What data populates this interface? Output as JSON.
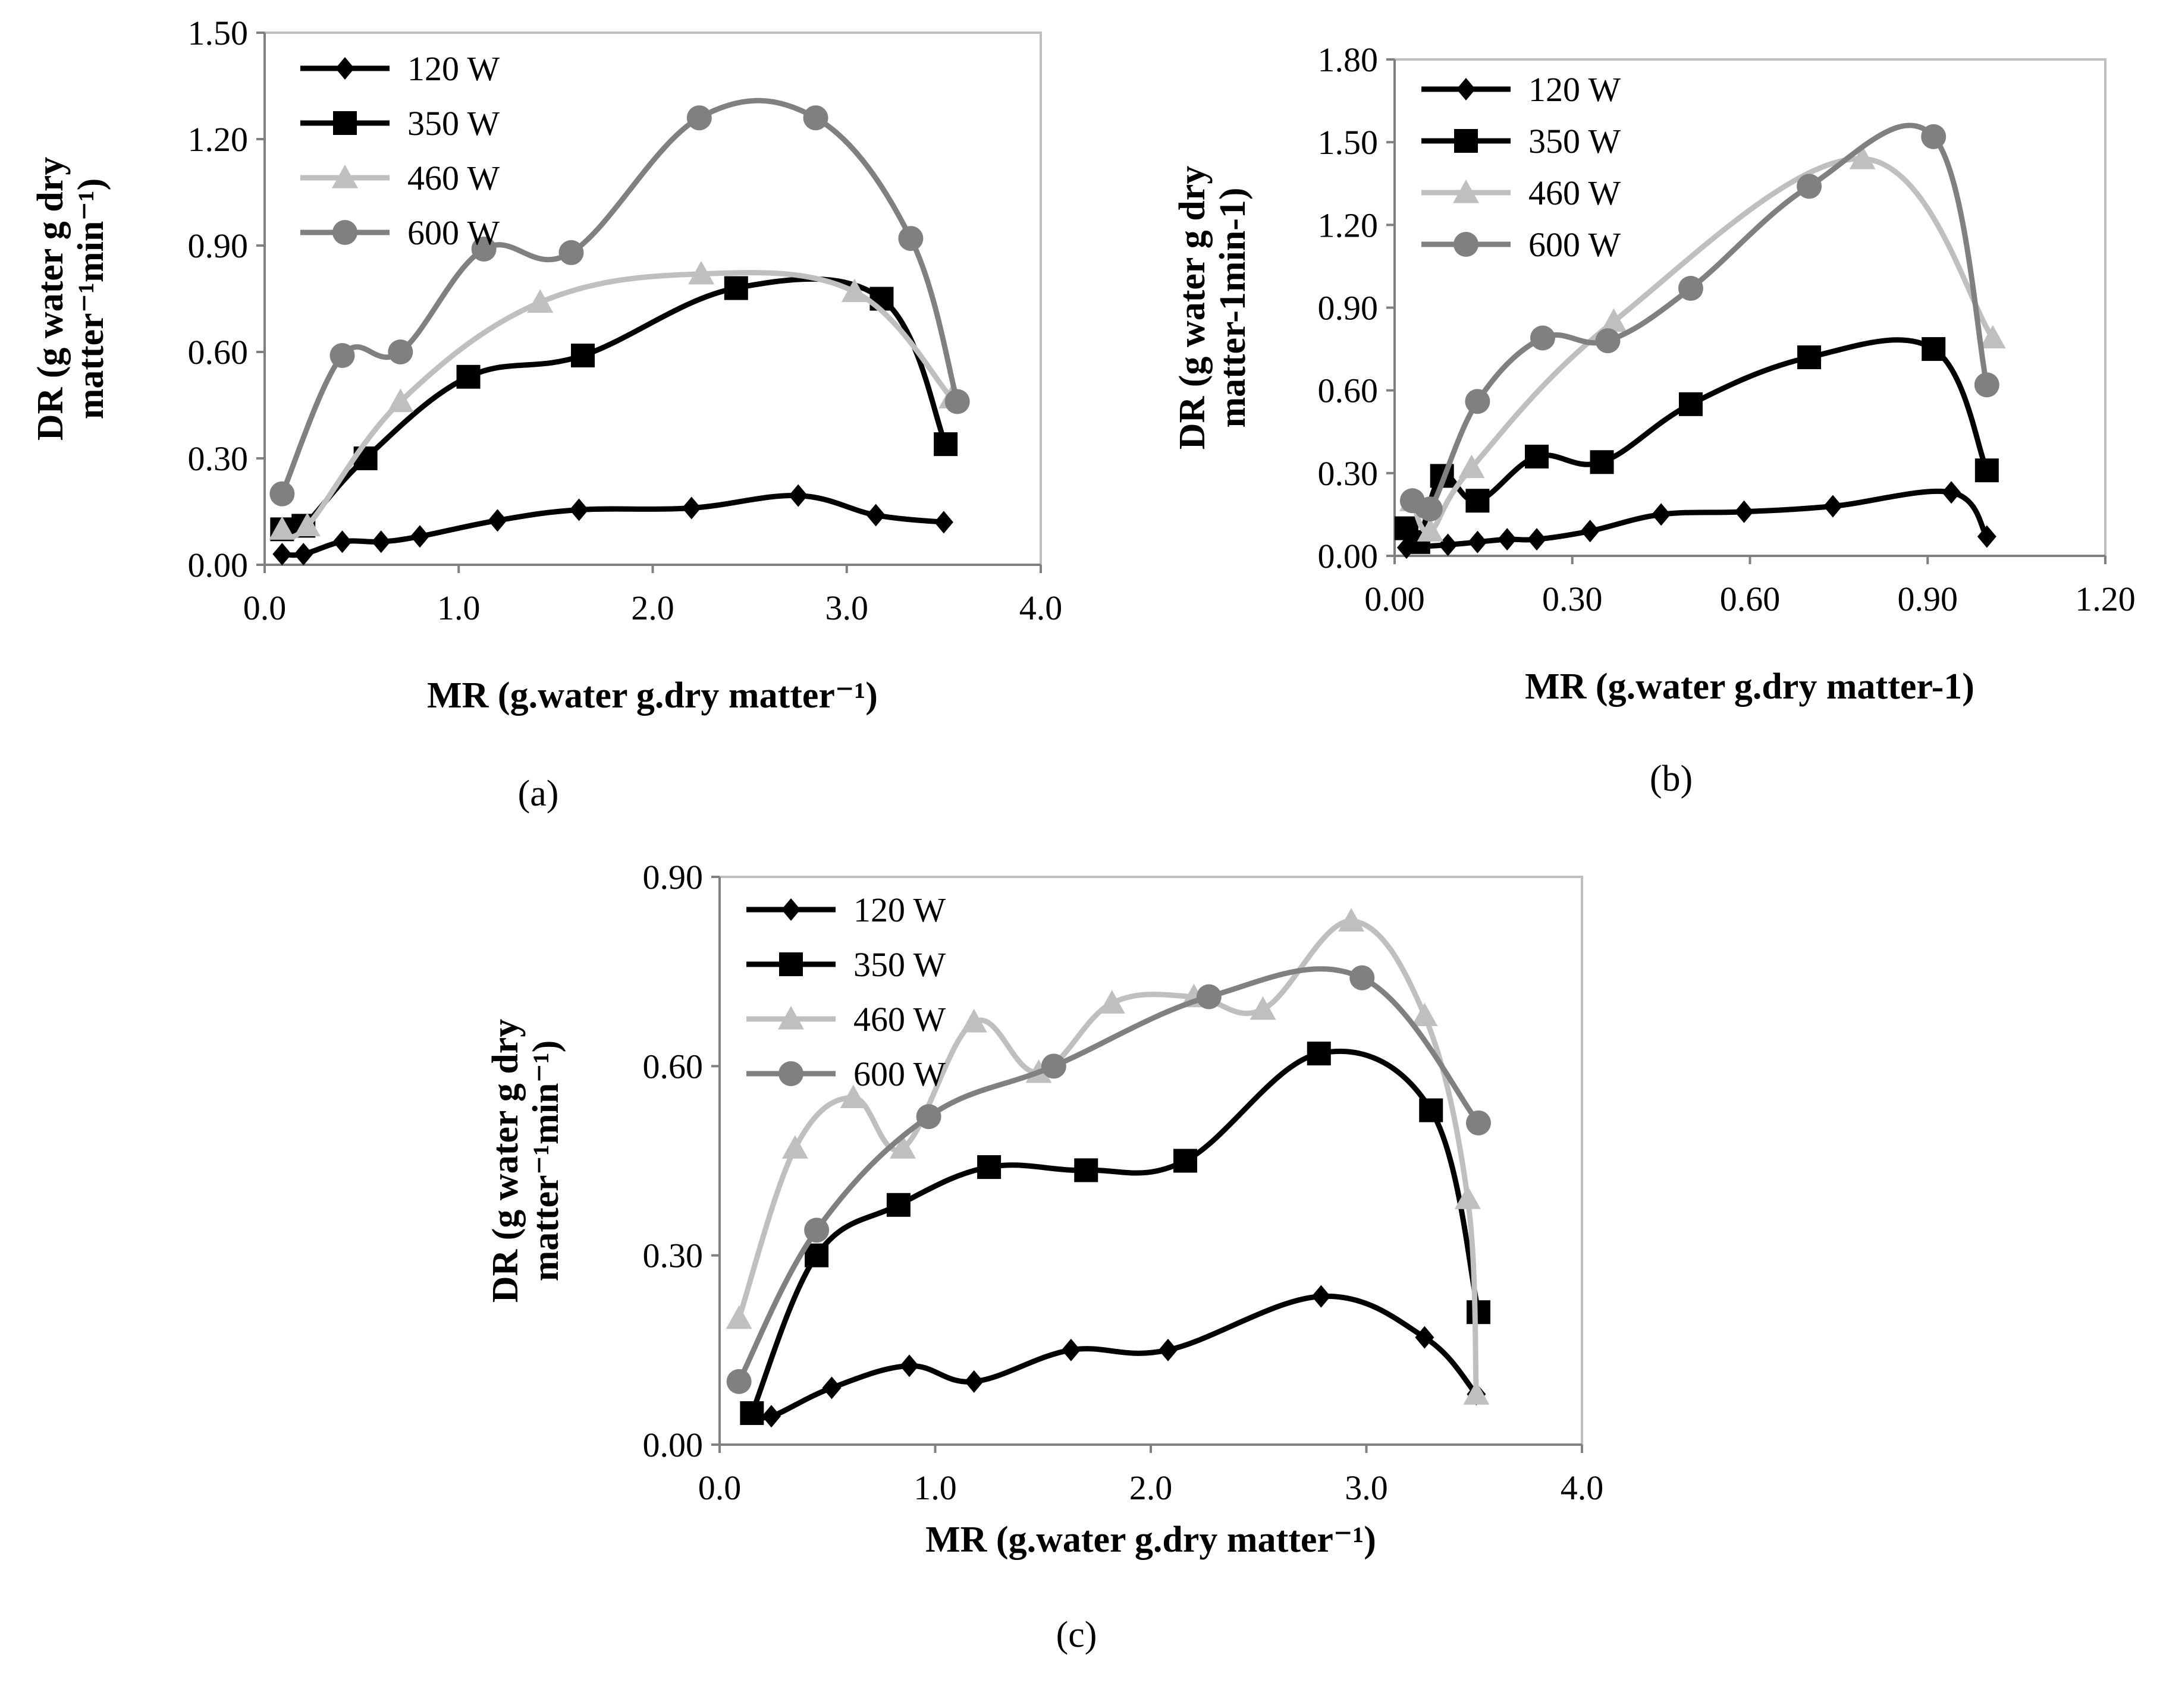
{
  "figure": {
    "panel_tags": [
      "(a)",
      "(b)",
      "(c)"
    ]
  },
  "colors": {
    "120 W": "#000000",
    "350 W": "#000000",
    "460 W": "#bfbfbf",
    "600 W": "#808080",
    "axis": "#808080",
    "frame": "#bfbfbf"
  },
  "markers": {
    "120 W": "diamond",
    "350 W": "square",
    "460 W": "triangle",
    "600 W": "circle"
  },
  "chart_data": [
    {
      "id": "a",
      "type": "line",
      "smooth": true,
      "panel_label": "(a)",
      "xlabel": "MR (g.water g.dry matter⁻¹)",
      "ylabel_lines": [
        "DR (g water g dry",
        "matter⁻¹min⁻¹)"
      ],
      "xlim": [
        0,
        4
      ],
      "ylim": [
        0,
        1.5
      ],
      "xticks": [
        "0.0",
        "1.0",
        "2.0",
        "3.0",
        "4.0"
      ],
      "yticks": [
        "0.00",
        "0.30",
        "0.60",
        "0.90",
        "1.20",
        "1.50"
      ],
      "legend": [
        "120 W",
        "350 W",
        "460 W",
        "600 W"
      ],
      "legend_position": "top-left",
      "series": [
        {
          "name": "120 W",
          "x": [
            0.09,
            0.2,
            0.4,
            0.6,
            0.8,
            1.2,
            1.62,
            2.2,
            2.75,
            3.15,
            3.5
          ],
          "y": [
            0.03,
            0.03,
            0.065,
            0.065,
            0.08,
            0.125,
            0.155,
            0.16,
            0.195,
            0.14,
            0.12
          ]
        },
        {
          "name": "350 W",
          "x": [
            0.09,
            0.2,
            0.52,
            1.05,
            1.64,
            2.43,
            3.18,
            3.51
          ],
          "y": [
            0.1,
            0.11,
            0.3,
            0.53,
            0.59,
            0.78,
            0.75,
            0.34
          ]
        },
        {
          "name": "460 W",
          "x": [
            0.09,
            0.22,
            0.7,
            1.42,
            2.25,
            3.04,
            3.54
          ],
          "y": [
            0.1,
            0.11,
            0.46,
            0.74,
            0.82,
            0.77,
            0.47
          ]
        },
        {
          "name": "600 W",
          "x": [
            0.09,
            0.4,
            0.7,
            1.13,
            1.58,
            2.24,
            2.84,
            3.33,
            3.57
          ],
          "y": [
            0.2,
            0.59,
            0.6,
            0.89,
            0.88,
            1.26,
            1.26,
            0.92,
            0.46
          ]
        }
      ]
    },
    {
      "id": "b",
      "type": "line",
      "smooth": true,
      "panel_label": "(b)",
      "xlabel": "MR (g.water g.dry matter-1)",
      "ylabel_lines": [
        "DR (g water g dry",
        "matter-1min-1)"
      ],
      "xlim": [
        0,
        1.2
      ],
      "ylim": [
        0,
        1.8
      ],
      "xticks": [
        "0.00",
        "0.30",
        "0.60",
        "0.90",
        "1.20"
      ],
      "yticks": [
        "0.00",
        "0.30",
        "0.60",
        "0.90",
        "1.20",
        "1.50",
        "1.80"
      ],
      "legend": [
        "120 W",
        "350 W",
        "460 W",
        "600 W"
      ],
      "legend_position": "top-left",
      "series": [
        {
          "name": "120 W",
          "x": [
            0.02,
            0.09,
            0.14,
            0.19,
            0.24,
            0.33,
            0.45,
            0.59,
            0.74,
            0.94,
            1.0
          ],
          "y": [
            0.03,
            0.04,
            0.05,
            0.06,
            0.06,
            0.09,
            0.15,
            0.16,
            0.18,
            0.23,
            0.07
          ]
        },
        {
          "name": "350 W",
          "x": [
            0.02,
            0.04,
            0.08,
            0.14,
            0.24,
            0.35,
            0.5,
            0.7,
            0.91,
            1.0
          ],
          "y": [
            0.1,
            0.05,
            0.29,
            0.2,
            0.36,
            0.34,
            0.55,
            0.72,
            0.75,
            0.31
          ]
        },
        {
          "name": "460 W",
          "x": [
            0.03,
            0.06,
            0.13,
            0.37,
            0.79,
            1.01
          ],
          "y": [
            0.2,
            0.09,
            0.32,
            0.85,
            1.44,
            0.79
          ]
        },
        {
          "name": "600 W",
          "x": [
            0.03,
            0.06,
            0.14,
            0.25,
            0.36,
            0.5,
            0.7,
            0.91,
            1.0
          ],
          "y": [
            0.2,
            0.17,
            0.56,
            0.79,
            0.78,
            0.97,
            1.34,
            1.52,
            0.62
          ]
        }
      ]
    },
    {
      "id": "c",
      "type": "line",
      "smooth": true,
      "panel_label": "(c)",
      "xlabel": "MR (g.water g.dry matter⁻¹)",
      "ylabel_lines": [
        "DR (g water g dry",
        "matter⁻¹min⁻¹)"
      ],
      "xlim": [
        0,
        4
      ],
      "ylim": [
        0,
        0.9
      ],
      "xticks": [
        "0.0",
        "1.0",
        "2.0",
        "3.0",
        "4.0"
      ],
      "yticks": [
        "0.00",
        "0.30",
        "0.60",
        "0.90"
      ],
      "legend": [
        "120 W",
        "350 W",
        "460 W",
        "600 W"
      ],
      "legend_position": "top-left",
      "series": [
        {
          "name": "120 W",
          "x": [
            0.15,
            0.24,
            0.52,
            0.88,
            1.18,
            1.63,
            2.08,
            2.79,
            3.27,
            3.51
          ],
          "y": [
            0.05,
            0.045,
            0.09,
            0.125,
            0.1,
            0.15,
            0.15,
            0.235,
            0.17,
            0.08
          ]
        },
        {
          "name": "350 W",
          "x": [
            0.15,
            0.45,
            0.83,
            1.25,
            1.7,
            2.16,
            2.78,
            3.3,
            3.52
          ],
          "y": [
            0.05,
            0.3,
            0.38,
            0.44,
            0.435,
            0.45,
            0.62,
            0.53,
            0.21
          ]
        },
        {
          "name": "460 W",
          "x": [
            0.09,
            0.35,
            0.62,
            0.85,
            1.18,
            1.48,
            1.82,
            2.2,
            2.52,
            2.93,
            3.27,
            3.47,
            3.51
          ],
          "y": [
            0.2,
            0.47,
            0.55,
            0.47,
            0.67,
            0.59,
            0.7,
            0.71,
            0.69,
            0.83,
            0.68,
            0.39,
            0.08
          ]
        },
        {
          "name": "600 W",
          "x": [
            0.09,
            0.45,
            0.97,
            1.55,
            2.27,
            2.98,
            3.52
          ],
          "y": [
            0.1,
            0.34,
            0.52,
            0.6,
            0.71,
            0.74,
            0.51
          ]
        }
      ]
    }
  ]
}
